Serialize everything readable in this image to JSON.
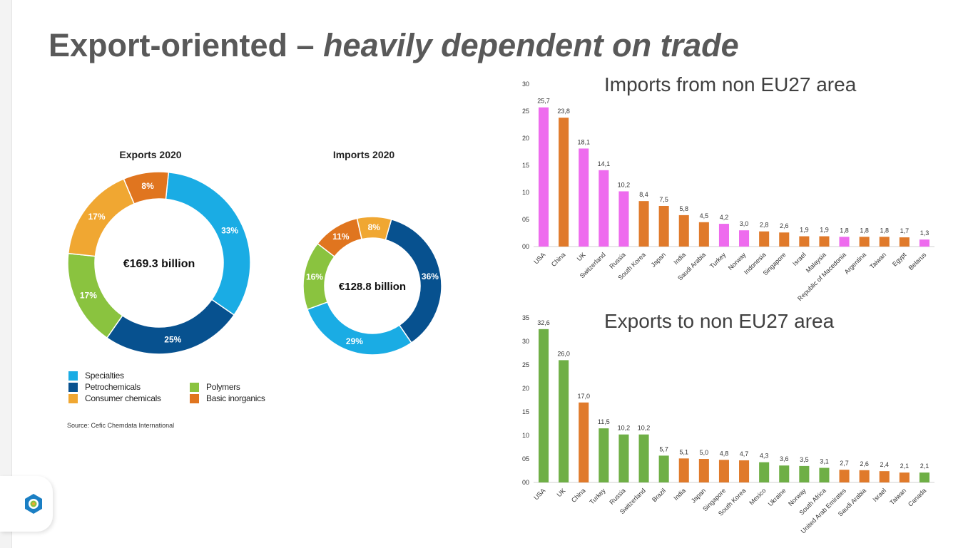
{
  "slide": {
    "title_main": "Export-oriented – ",
    "title_emphasis": "heavily dependent on trade",
    "source": "Source: Cefic Chemdata International"
  },
  "legend": [
    {
      "label": "Specialties",
      "color": "#1AACE4"
    },
    {
      "label": "Petrochemicals",
      "color": "#07518F"
    },
    {
      "label": "Consumer chemicals",
      "color": "#F0A732"
    },
    {
      "label": "Polymers",
      "color": "#8AC33F"
    },
    {
      "label": "Basic inorganics",
      "color": "#E0751F"
    }
  ],
  "chart_data": [
    {
      "type": "pie",
      "variant": "donut",
      "title": "Exports 2020",
      "center_label": "€169.3 billion",
      "start_angle_deg": 6,
      "slices": [
        {
          "label": "Specialties",
          "value": 33,
          "value_label": "33%",
          "color": "#1AACE4"
        },
        {
          "label": "Petrochemicals",
          "value": 25,
          "value_label": "25%",
          "color": "#07518F"
        },
        {
          "label": "Polymers",
          "value": 17,
          "value_label": "17%",
          "color": "#8AC33F"
        },
        {
          "label": "Consumer chemicals",
          "value": 17,
          "value_label": "17%",
          "color": "#F0A732"
        },
        {
          "label": "Basic inorganics",
          "value": 8,
          "value_label": "8%",
          "color": "#E0751F"
        }
      ]
    },
    {
      "type": "pie",
      "variant": "donut",
      "title": "Imports 2020",
      "center_label": "€128.8 billion",
      "start_angle_deg": 16,
      "slices": [
        {
          "label": "Petrochemicals",
          "value": 36,
          "value_label": "36%",
          "color": "#07518F"
        },
        {
          "label": "Specialties",
          "value": 29,
          "value_label": "29%",
          "color": "#1AACE4"
        },
        {
          "label": "Polymers",
          "value": 16,
          "value_label": "16%",
          "color": "#8AC33F"
        },
        {
          "label": "Basic inorganics",
          "value": 11,
          "value_label": "11%",
          "color": "#E0751F"
        },
        {
          "label": "Consumer chemicals",
          "value": 8,
          "value_label": "8%",
          "color": "#F0A732"
        }
      ]
    },
    {
      "type": "bar",
      "title": "Imports from non EU27 area",
      "ylim": [
        0,
        30
      ],
      "yticks": [
        "00",
        "05",
        "10",
        "15",
        "20",
        "25",
        "30"
      ],
      "grid": false,
      "categories": [
        "USA",
        "China",
        "UK",
        "Switzerland",
        "Russia",
        "South Korea",
        "Japan",
        "India",
        "Saudi Arabia",
        "Turkey",
        "Norway",
        "Indonesia",
        "Singapore",
        "Israel",
        "Malaysia",
        "Republic of Macedonia",
        "Argentina",
        "Taiwan",
        "Egypt",
        "Belarus"
      ],
      "values": [
        25.7,
        23.8,
        18.1,
        14.1,
        10.2,
        8.4,
        7.5,
        5.8,
        4.5,
        4.2,
        3.0,
        2.8,
        2.6,
        1.9,
        1.9,
        1.8,
        1.8,
        1.8,
        1.7,
        1.3
      ],
      "value_labels": [
        "25,7",
        "23,8",
        "18,1",
        "14,1",
        "10,2",
        "8,4",
        "7,5",
        "5,8",
        "4,5",
        "4,2",
        "3,0",
        "2,8",
        "2,6",
        "1,9",
        "1,9",
        "1,8",
        "1,8",
        "1,8",
        "1,7",
        "1,3"
      ],
      "colors": [
        "#EE6BEE",
        "#E07A2B",
        "#EE6BEE",
        "#EE6BEE",
        "#EE6BEE",
        "#E07A2B",
        "#E07A2B",
        "#E07A2B",
        "#E07A2B",
        "#EE6BEE",
        "#EE6BEE",
        "#E07A2B",
        "#E07A2B",
        "#E07A2B",
        "#E07A2B",
        "#EE6BEE",
        "#E07A2B",
        "#E07A2B",
        "#E07A2B",
        "#EE6BEE"
      ]
    },
    {
      "type": "bar",
      "title": "Exports to non EU27 area",
      "ylim": [
        0,
        35
      ],
      "yticks": [
        "00",
        "05",
        "10",
        "15",
        "20",
        "25",
        "30",
        "35"
      ],
      "grid": false,
      "categories": [
        "USA",
        "UK",
        "China",
        "Turkey",
        "Russia",
        "Switzerland",
        "Brazil",
        "India",
        "Japan",
        "Singapore",
        "South Korea",
        "Mexico",
        "Ukraine",
        "Norway",
        "South Africa",
        "United Arab Emirates",
        "Saudi Arabia",
        "Israel",
        "Taiwan",
        "Canada"
      ],
      "values": [
        32.6,
        26.0,
        17.0,
        11.5,
        10.2,
        10.2,
        5.7,
        5.1,
        5.0,
        4.8,
        4.7,
        4.3,
        3.6,
        3.5,
        3.1,
        2.7,
        2.6,
        2.4,
        2.1,
        2.1
      ],
      "value_labels": [
        "32,6",
        "26,0",
        "17,0",
        "11,5",
        "10,2",
        "10,2",
        "5,7",
        "5,1",
        "5,0",
        "4,8",
        "4,7",
        "4,3",
        "3,6",
        "3,5",
        "3,1",
        "2,7",
        "2,6",
        "2,4",
        "2,1",
        "2,1"
      ],
      "colors": [
        "#6FAF46",
        "#6FAF46",
        "#E07A2B",
        "#6FAF46",
        "#6FAF46",
        "#6FAF46",
        "#6FAF46",
        "#E07A2B",
        "#E07A2B",
        "#E07A2B",
        "#E07A2B",
        "#6FAF46",
        "#6FAF46",
        "#6FAF46",
        "#6FAF46",
        "#E07A2B",
        "#E07A2B",
        "#E07A2B",
        "#E07A2B",
        "#6FAF46"
      ]
    }
  ]
}
